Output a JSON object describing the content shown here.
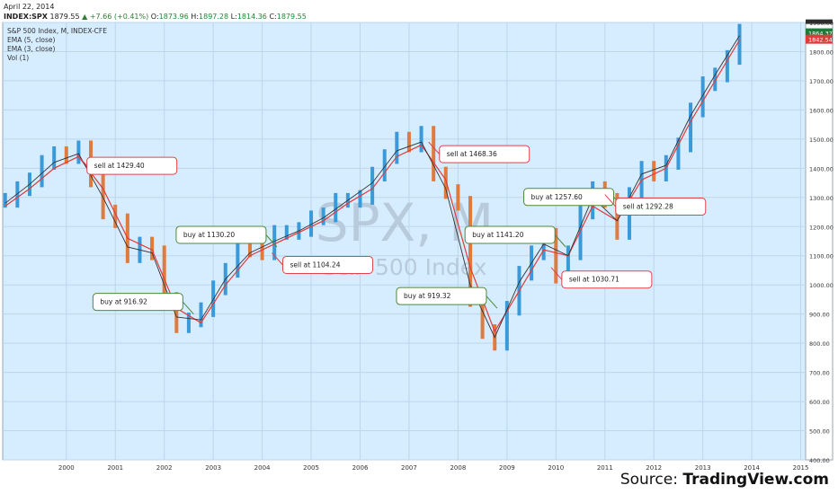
{
  "header": {
    "date": "April 22, 2014",
    "symbol": "INDEX:SPX",
    "last": "1879.55",
    "change": "▲ +7.66 (+0.41%)",
    "o_label": "O:",
    "o_value": "1873.96",
    "h_label": "H:",
    "h_value": "1897.28",
    "l_label": "L:",
    "l_value": "1814.36",
    "c_label": "C:",
    "c_value": "1879.55"
  },
  "legend": {
    "title": "S&P 500 Index, M, INDEX-CFE",
    "ema5": "EMA (5, close)",
    "ema3": "EMA (3, close)",
    "vol": "Vol (1)"
  },
  "watermark": {
    "symbol": "SPX, M",
    "name": "S&P 500 Index"
  },
  "source": {
    "prefix": "Source: ",
    "brand": "TradingView.com"
  },
  "colors": {
    "plot_bg": "#d6ecff",
    "up": "#3a9ad9",
    "down": "#e07b3e",
    "ema5": "#e23a3a",
    "ema3": "#333333",
    "buy_border": "#4b8a3a",
    "sell_border": "#e0434b",
    "badge_top": "#2e2e2e",
    "badge_mid": "#1f7a3a",
    "badge_low": "#e23a3a"
  },
  "chart_data": {
    "type": "line",
    "title": "S&P 500 Index, M, INDEX-CFE",
    "xlabel": "",
    "ylabel": "",
    "ylim": [
      400,
      1900
    ],
    "xlim": [
      1999.2,
      2015.6
    ],
    "grid": true,
    "x_ticks": [
      "2000",
      "2001",
      "2002",
      "2003",
      "2004",
      "2005",
      "2006",
      "2007",
      "2008",
      "2009",
      "2010",
      "2011",
      "2012",
      "2013",
      "2014",
      "2015"
    ],
    "y_ticks": [
      "400.00",
      "500.00",
      "600.00",
      "700.00",
      "800.00",
      "900.00",
      "1000.00",
      "1100.00",
      "1200.00",
      "1300.00",
      "1400.00",
      "1500.00",
      "1600.00",
      "1700.00",
      "1800.00",
      "1900.00"
    ],
    "series": [
      {
        "name": "S&P 500 Index, M, INDEX-CFE",
        "style": "monthly bars",
        "x": [
          1999.25,
          1999.5,
          1999.75,
          2000.0,
          2000.25,
          2000.5,
          2000.75,
          2001.0,
          2001.25,
          2001.5,
          2001.75,
          2002.0,
          2002.25,
          2002.5,
          2002.75,
          2003.0,
          2003.25,
          2003.5,
          2003.75,
          2004.0,
          2004.25,
          2004.5,
          2004.75,
          2005.0,
          2005.25,
          2005.5,
          2005.75,
          2006.0,
          2006.25,
          2006.5,
          2006.75,
          2007.0,
          2007.25,
          2007.5,
          2007.75,
          2008.0,
          2008.25,
          2008.5,
          2008.75,
          2009.0,
          2009.25,
          2009.5,
          2009.75,
          2010.0,
          2010.25,
          2010.5,
          2010.75,
          2011.0,
          2011.25,
          2011.5,
          2011.75,
          2012.0,
          2012.25,
          2012.5,
          2012.75,
          2013.0,
          2013.25,
          2013.5,
          2013.75,
          2014.0,
          2014.25
        ],
        "values": [
          1290,
          1330,
          1360,
          1420,
          1450,
          1440,
          1470,
          1360,
          1250,
          1220,
          1100,
          1140,
          1110,
          950,
          860,
          880,
          915,
          990,
          1050,
          1130,
          1120,
          1110,
          1180,
          1180,
          1190,
          1230,
          1240,
          1290,
          1290,
          1300,
          1380,
          1440,
          1500,
          1480,
          1520,
          1380,
          1320,
          1280,
          950,
          840,
          800,
          920,
          1040,
          1110,
          1170,
          1030,
          1110,
          1250,
          1330,
          1290,
          1180,
          1310,
          1400,
          1380,
          1420,
          1480,
          1600,
          1690,
          1720,
          1780,
          1870
        ]
      },
      {
        "name": "EMA (5, close)",
        "x": [
          1999.25,
          1999.75,
          2000.25,
          2000.75,
          2001.25,
          2001.75,
          2002.25,
          2002.75,
          2003.25,
          2003.75,
          2004.25,
          2004.75,
          2005.25,
          2005.75,
          2006.25,
          2006.75,
          2007.25,
          2007.75,
          2008.25,
          2008.75,
          2009.25,
          2009.75,
          2010.25,
          2010.75,
          2011.25,
          2011.75,
          2012.25,
          2012.75,
          2013.25,
          2013.75,
          2014.25
        ],
        "values": [
          1270,
          1330,
          1400,
          1440,
          1330,
          1160,
          1120,
          920,
          870,
          1000,
          1100,
          1140,
          1180,
          1220,
          1280,
          1330,
          1440,
          1480,
          1360,
          1060,
          840,
          980,
          1120,
          1100,
          1270,
          1220,
          1360,
          1400,
          1560,
          1700,
          1840
        ]
      },
      {
        "name": "EMA (3, close)",
        "x": [
          1999.25,
          1999.75,
          2000.25,
          2000.75,
          2001.25,
          2001.75,
          2002.25,
          2002.75,
          2003.25,
          2003.75,
          2004.25,
          2004.75,
          2005.25,
          2005.75,
          2006.25,
          2006.75,
          2007.25,
          2007.75,
          2008.25,
          2008.75,
          2009.25,
          2009.75,
          2010.25,
          2010.75,
          2011.25,
          2011.75,
          2012.25,
          2012.75,
          2013.25,
          2013.75,
          2014.25
        ],
        "values": [
          1280,
          1345,
          1420,
          1450,
          1300,
          1130,
          1110,
          890,
          880,
          1020,
          1110,
          1150,
          1185,
          1230,
          1290,
          1350,
          1460,
          1490,
          1330,
          1000,
          820,
          1010,
          1140,
          1100,
          1300,
          1220,
          1380,
          1410,
          1580,
          1720,
          1855
        ]
      }
    ],
    "signals": [
      {
        "kind": "sell",
        "label": "sell at 1429.40",
        "x": 2000.7,
        "y": 1450
      },
      {
        "kind": "buy",
        "label": "buy at 916.92",
        "x": 2003.1,
        "y": 900
      },
      {
        "kind": "buy",
        "label": "buy at 1130.20",
        "x": 2004.8,
        "y": 1130
      },
      {
        "kind": "sell",
        "label": "sell at 1104.24",
        "x": 2004.7,
        "y": 1110
      },
      {
        "kind": "sell",
        "label": "sell at 1468.36",
        "x": 2007.9,
        "y": 1490
      },
      {
        "kind": "buy",
        "label": "buy at 919.32",
        "x": 2009.3,
        "y": 920
      },
      {
        "kind": "buy",
        "label": "buy at 1141.20",
        "x": 2010.7,
        "y": 1130
      },
      {
        "kind": "sell",
        "label": "sell at 1030.71",
        "x": 2010.4,
        "y": 1060
      },
      {
        "kind": "buy",
        "label": "buy at 1257.60",
        "x": 2011.9,
        "y": 1260
      },
      {
        "kind": "sell",
        "label": "sell at 1292.28",
        "x": 2011.5,
        "y": 1310
      }
    ],
    "price_badges": [
      "1864.37",
      "1842.54"
    ]
  }
}
